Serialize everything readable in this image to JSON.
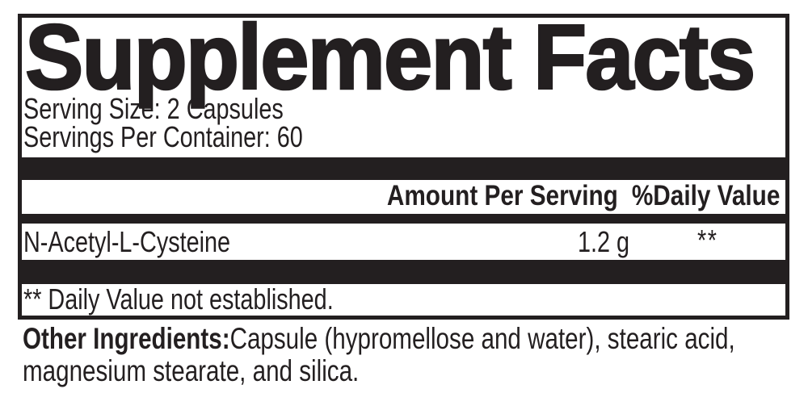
{
  "label": {
    "title": "Supplement Facts",
    "serving_size": "Serving Size: 2 Capsules",
    "servings_per_container": "Servings Per Container: 60",
    "columns": {
      "amount": "Amount Per Serving",
      "daily_value": "%Daily Value"
    },
    "rows": [
      {
        "name": "N-Acetyl-L-Cysteine",
        "amount": "1.2 g",
        "daily_value": "**"
      }
    ],
    "footnote": "** Daily Value not established.",
    "colors": {
      "ink": "#231f20",
      "background": "#ffffff"
    }
  },
  "other_ingredients": {
    "label": "Other Ingredients:",
    "line1": "Capsule (hypromellose and water), stearic acid,",
    "line2": "magnesium stearate, and silica."
  }
}
